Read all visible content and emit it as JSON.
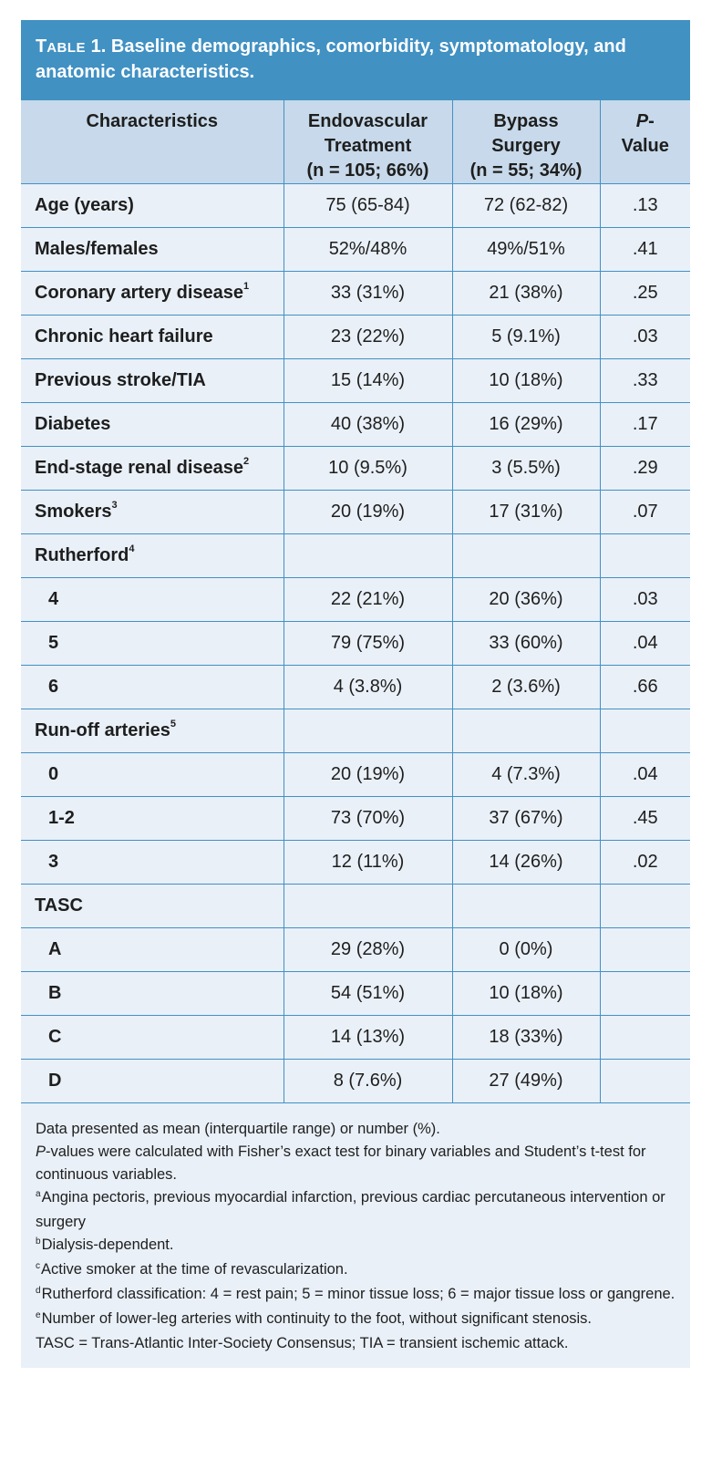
{
  "title": {
    "prefix_big": "T",
    "prefix_small": "ABLE",
    "number": "1.",
    "text": "Baseline demographics, comorbidity, symptomatology, and anatomic characteristics."
  },
  "header": {
    "col1": "Characteristics",
    "col2_line1": "Endovascular",
    "col2_line2": "Treatment",
    "col2_line3": "(n = 105; 66%)",
    "col3_line1": "Bypass",
    "col3_line2": "Surgery",
    "col3_line3": "(n = 55; 34%)",
    "col4_line1_italic": "P",
    "col4_line1_rest": "-",
    "col4_line2": "Value"
  },
  "rows": [
    {
      "label": "Age (years)",
      "sup": "",
      "endo": "75 (65-84)",
      "bypass": "72 (62-82)",
      "p": ".13",
      "sub": false
    },
    {
      "label": "Males/females",
      "sup": "",
      "endo": "52%/48%",
      "bypass": "49%/51%",
      "p": ".41",
      "sub": false
    },
    {
      "label": "Coronary artery disease",
      "sup": "1",
      "endo": "33 (31%)",
      "bypass": "21 (38%)",
      "p": ".25",
      "sub": false
    },
    {
      "label": "Chronic heart failure",
      "sup": "",
      "endo": "23 (22%)",
      "bypass": "5 (9.1%)",
      "p": ".03",
      "sub": false
    },
    {
      "label": "Previous stroke/TIA",
      "sup": "",
      "endo": "15 (14%)",
      "bypass": "10 (18%)",
      "p": ".33",
      "sub": false
    },
    {
      "label": "Diabetes",
      "sup": "",
      "endo": "40 (38%)",
      "bypass": "16 (29%)",
      "p": ".17",
      "sub": false
    },
    {
      "label": "End-stage renal disease",
      "sup": "2",
      "endo": "10 (9.5%)",
      "bypass": "3 (5.5%)",
      "p": ".29",
      "sub": false
    },
    {
      "label": "Smokers",
      "sup": "3",
      "endo": "20 (19%)",
      "bypass": "17 (31%)",
      "p": ".07",
      "sub": false
    },
    {
      "label": "Rutherford",
      "sup": "4",
      "endo": "",
      "bypass": "",
      "p": "",
      "sub": false
    },
    {
      "label": "4",
      "sup": "",
      "endo": "22 (21%)",
      "bypass": "20 (36%)",
      "p": ".03",
      "sub": true
    },
    {
      "label": "5",
      "sup": "",
      "endo": "79 (75%)",
      "bypass": "33 (60%)",
      "p": ".04",
      "sub": true
    },
    {
      "label": "6",
      "sup": "",
      "endo": "4 (3.8%)",
      "bypass": "2 (3.6%)",
      "p": ".66",
      "sub": true
    },
    {
      "label": "Run-off arteries",
      "sup": "5",
      "endo": "",
      "bypass": "",
      "p": "",
      "sub": false
    },
    {
      "label": "0",
      "sup": "",
      "endo": "20 (19%)",
      "bypass": "4 (7.3%)",
      "p": ".04",
      "sub": true
    },
    {
      "label": "1-2",
      "sup": "",
      "endo": "73 (70%)",
      "bypass": "37 (67%)",
      "p": ".45",
      "sub": true
    },
    {
      "label": "3",
      "sup": "",
      "endo": "12 (11%)",
      "bypass": "14 (26%)",
      "p": ".02",
      "sub": true
    },
    {
      "label": "TASC",
      "sup": "",
      "endo": "",
      "bypass": "",
      "p": "",
      "sub": false
    },
    {
      "label": "A",
      "sup": "",
      "endo": "29 (28%)",
      "bypass": "0 (0%)",
      "p": "",
      "sub": true
    },
    {
      "label": "B",
      "sup": "",
      "endo": "54 (51%)",
      "bypass": "10 (18%)",
      "p": "",
      "sub": true
    },
    {
      "label": "C",
      "sup": "",
      "endo": "14 (13%)",
      "bypass": "18 (33%)",
      "p": "",
      "sub": true
    },
    {
      "label": "D",
      "sup": "",
      "endo": "8 (7.6%)",
      "bypass": "27 (49%)",
      "p": "",
      "sub": true
    }
  ],
  "footnotes": {
    "data_presented": "Data presented as mean (interquartile range) or number (%).",
    "pvalues_italic": "P",
    "pvalues_rest": "-values were calculated with Fisher’s exact test for binary variables and Student’s t-test for continuous variables.",
    "a_mark": "a",
    "a_text": "Angina pectoris, previous myocardial infarction, previous cardiac percutaneous intervention or surgery",
    "b_mark": "b",
    "b_text": "Dialysis-dependent.",
    "c_mark": "c",
    "c_text": "Active smoker at the time of revascularization.",
    "d_mark": "d",
    "d_text": "Rutherford classification: 4 = rest pain; 5 = minor tissue loss; 6 = major tissue loss or gangrene.",
    "e_mark": "e",
    "e_text": "Number of lower-leg arteries with continuity to the foot, without significant stenosis.",
    "abbrev": "TASC = Trans-Atlantic Inter-Society Consensus; TIA = transient ischemic attack."
  },
  "colors": {
    "title_bg": "#4191c3",
    "header_bg": "#c7d9ea",
    "body_bg": "#e9f0f8",
    "border": "#4191c3"
  }
}
